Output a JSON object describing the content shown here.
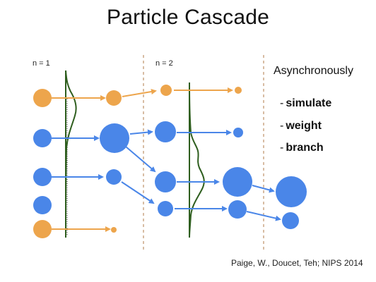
{
  "slide": {
    "title": "Particle Cascade",
    "labels": {
      "n1": "n = 1",
      "n2": "n = 2"
    },
    "side": {
      "title": "Asynchronously",
      "steps": [
        {
          "dash": "-",
          "word": "simulate"
        },
        {
          "dash": "-",
          "word": "weight"
        },
        {
          "dash": "-",
          "word": "branch"
        }
      ]
    },
    "citation": "Paige, W., Doucet, Teh; NIPS 2014"
  },
  "colors": {
    "orange": "#EDA54C",
    "blue": "#4A86E8",
    "green": "#2E5E1E",
    "divider": "#B07B4A",
    "text": "#111111"
  }
}
